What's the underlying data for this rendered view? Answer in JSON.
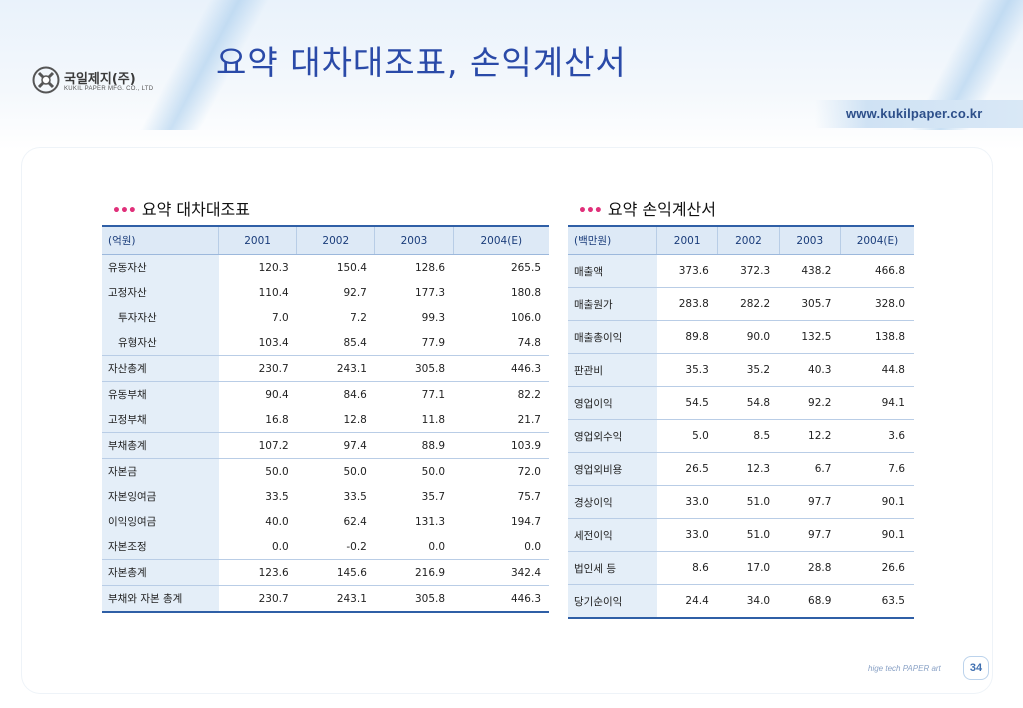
{
  "header": {
    "title": "요약 대차대조표, 손익계산서",
    "url": "www.kukilpaper.co.kr",
    "logo_kr": "국일제지(주)",
    "logo_en": "KUKIL PAPER MFG. CO., LTD"
  },
  "colors": {
    "title": "#2a4aa8",
    "accent": "#e0307a",
    "table_border": "#2f5fa6",
    "label_bg": "#e4eef8"
  },
  "balance_sheet": {
    "title": "요약 대차대조표",
    "unit": "(억원)",
    "years": [
      "2001",
      "2002",
      "2003",
      "2004(E)"
    ],
    "rows": [
      {
        "label": "유동자산",
        "values": [
          "120.3",
          "150.4",
          "128.6",
          "265.5"
        ]
      },
      {
        "label": "고정자산",
        "values": [
          "110.4",
          "92.7",
          "177.3",
          "180.8"
        ]
      },
      {
        "label": "투자자산",
        "values": [
          "7.0",
          "7.2",
          "99.3",
          "106.0"
        ]
      },
      {
        "label": "유형자산",
        "values": [
          "103.4",
          "85.4",
          "77.9",
          "74.8"
        ]
      },
      {
        "label": "자산총계",
        "values": [
          "230.7",
          "243.1",
          "305.8",
          "446.3"
        ]
      },
      {
        "label": "유동부채",
        "values": [
          "90.4",
          "84.6",
          "77.1",
          "82.2"
        ]
      },
      {
        "label": "고정부채",
        "values": [
          "16.8",
          "12.8",
          "11.8",
          "21.7"
        ]
      },
      {
        "label": "부채총계",
        "values": [
          "107.2",
          "97.4",
          "88.9",
          "103.9"
        ]
      },
      {
        "label": "자본금",
        "values": [
          "50.0",
          "50.0",
          "50.0",
          "72.0"
        ]
      },
      {
        "label": "자본잉여금",
        "values": [
          "33.5",
          "33.5",
          "35.7",
          "75.7"
        ]
      },
      {
        "label": "이익잉여금",
        "values": [
          "40.0",
          "62.4",
          "131.3",
          "194.7"
        ]
      },
      {
        "label": "자본조정",
        "values": [
          "0.0",
          "-0.2",
          "0.0",
          "0.0"
        ]
      },
      {
        "label": "자본총계",
        "values": [
          "123.6",
          "145.6",
          "216.9",
          "342.4"
        ]
      },
      {
        "label": "부채와 자본 총계",
        "values": [
          "230.7",
          "243.1",
          "305.8",
          "446.3"
        ]
      }
    ]
  },
  "income_statement": {
    "title": "요약 손익계산서",
    "unit": "(백만원)",
    "years": [
      "2001",
      "2002",
      "2003",
      "2004(E)"
    ],
    "rows": [
      {
        "label": "매출액",
        "values": [
          "373.6",
          "372.3",
          "438.2",
          "466.8"
        ]
      },
      {
        "label": "매출원가",
        "values": [
          "283.8",
          "282.2",
          "305.7",
          "328.0"
        ]
      },
      {
        "label": "매출총이익",
        "values": [
          "89.8",
          "90.0",
          "132.5",
          "138.8"
        ]
      },
      {
        "label": "판관비",
        "values": [
          "35.3",
          "35.2",
          "40.3",
          "44.8"
        ]
      },
      {
        "label": "영업이익",
        "values": [
          "54.5",
          "54.8",
          "92.2",
          "94.1"
        ]
      },
      {
        "label": "영업외수익",
        "values": [
          "5.0",
          "8.5",
          "12.2",
          "3.6"
        ]
      },
      {
        "label": "영업외비용",
        "values": [
          "26.5",
          "12.3",
          "6.7",
          "7.6"
        ]
      },
      {
        "label": "경상이익",
        "values": [
          "33.0",
          "51.0",
          "97.7",
          "90.1"
        ]
      },
      {
        "label": "세전이익",
        "values": [
          "33.0",
          "51.0",
          "97.7",
          "90.1"
        ]
      },
      {
        "label": "법인세 등",
        "values": [
          "8.6",
          "17.0",
          "28.8",
          "26.6"
        ]
      },
      {
        "label": "당기순이익",
        "values": [
          "24.4",
          "34.0",
          "68.9",
          "63.5"
        ]
      }
    ]
  },
  "footer": {
    "slogan": "hige tech PAPER art",
    "page": "34"
  }
}
